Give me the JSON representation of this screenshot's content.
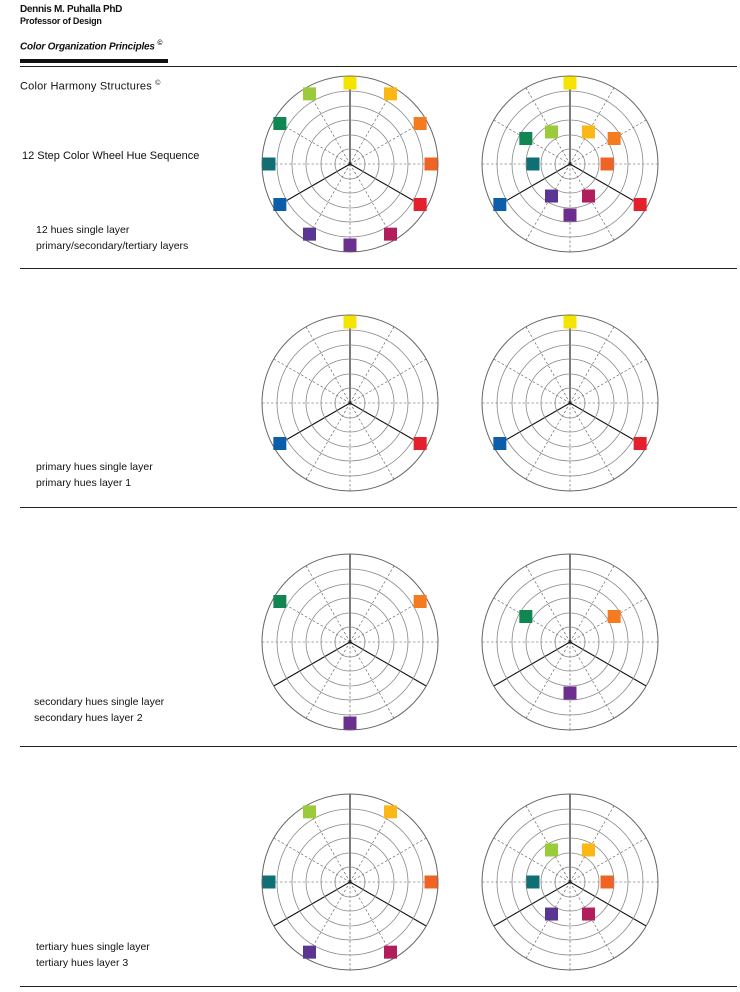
{
  "header": {
    "author": "Dennis M. Puhalla PhD",
    "role": "Professor of Design",
    "series": "Color Organization Principles",
    "copyright_mark": "©"
  },
  "section_title": "Color Harmony Structures",
  "section_heading": "12 Step Color Wheel Hue Sequence",
  "colors": {
    "yellow": "#f5e400",
    "yellow_orange": "#fbb814",
    "orange": "#f47b20",
    "red_orange": "#ef6424",
    "red": "#e3202c",
    "red_violet": "#b01e5c",
    "violet": "#6d2f8e",
    "blue_violet": "#5a3592",
    "blue": "#0d5eaa",
    "blue_green": "#0f6f72",
    "green": "#108653",
    "yellow_green": "#9acb3a"
  },
  "rows": [
    {
      "caption_lines": [
        "12 hues single layer",
        "primary/secondary/tertiary layers"
      ],
      "wheels": [
        {
          "layout": "single",
          "markers": [
            {
              "hue_index": 0,
              "color": "#f5e400"
            },
            {
              "hue_index": 1,
              "color": "#fbb814"
            },
            {
              "hue_index": 2,
              "color": "#f47b20"
            },
            {
              "hue_index": 3,
              "color": "#ef6424"
            },
            {
              "hue_index": 4,
              "color": "#e3202c"
            },
            {
              "hue_index": 5,
              "color": "#b01e5c"
            },
            {
              "hue_index": 6,
              "color": "#6d2f8e"
            },
            {
              "hue_index": 7,
              "color": "#5a3592"
            },
            {
              "hue_index": 8,
              "color": "#0d5eaa"
            },
            {
              "hue_index": 9,
              "color": "#0f6f72"
            },
            {
              "hue_index": 10,
              "color": "#108653"
            },
            {
              "hue_index": 11,
              "color": "#9acb3a"
            }
          ]
        },
        {
          "layout": "layered",
          "markers": [
            {
              "hue_index": 0,
              "layer": 1,
              "color": "#f5e400"
            },
            {
              "hue_index": 1,
              "layer": 3,
              "color": "#fbb814"
            },
            {
              "hue_index": 2,
              "layer": 2,
              "color": "#f47b20"
            },
            {
              "hue_index": 3,
              "layer": 3,
              "color": "#ef6424"
            },
            {
              "hue_index": 4,
              "layer": 1,
              "color": "#e3202c"
            },
            {
              "hue_index": 5,
              "layer": 3,
              "color": "#b01e5c"
            },
            {
              "hue_index": 6,
              "layer": 2,
              "color": "#6d2f8e"
            },
            {
              "hue_index": 7,
              "layer": 3,
              "color": "#5a3592"
            },
            {
              "hue_index": 8,
              "layer": 1,
              "color": "#0d5eaa"
            },
            {
              "hue_index": 9,
              "layer": 3,
              "color": "#0f6f72"
            },
            {
              "hue_index": 10,
              "layer": 2,
              "color": "#108653"
            },
            {
              "hue_index": 11,
              "layer": 3,
              "color": "#9acb3a"
            }
          ]
        }
      ]
    },
    {
      "caption_lines": [
        "primary hues single layer",
        "primary hues layer 1"
      ],
      "wheels": [
        {
          "layout": "single",
          "markers": [
            {
              "hue_index": 0,
              "color": "#f5e400"
            },
            {
              "hue_index": 4,
              "color": "#e3202c"
            },
            {
              "hue_index": 8,
              "color": "#0d5eaa"
            }
          ]
        },
        {
          "layout": "layered",
          "markers": [
            {
              "hue_index": 0,
              "layer": 1,
              "color": "#f5e400"
            },
            {
              "hue_index": 4,
              "layer": 1,
              "color": "#e3202c"
            },
            {
              "hue_index": 8,
              "layer": 1,
              "color": "#0d5eaa"
            }
          ]
        }
      ]
    },
    {
      "caption_lines": [
        "secondary hues single layer",
        "secondary hues layer 2"
      ],
      "wheels": [
        {
          "layout": "single",
          "markers": [
            {
              "hue_index": 2,
              "color": "#f47b20"
            },
            {
              "hue_index": 6,
              "color": "#6d2f8e"
            },
            {
              "hue_index": 10,
              "color": "#108653"
            }
          ]
        },
        {
          "layout": "layered",
          "markers": [
            {
              "hue_index": 2,
              "layer": 2,
              "color": "#f47b20"
            },
            {
              "hue_index": 6,
              "layer": 2,
              "color": "#6d2f8e"
            },
            {
              "hue_index": 10,
              "layer": 2,
              "color": "#108653"
            }
          ]
        }
      ]
    },
    {
      "caption_lines": [
        "tertiary hues single layer",
        "tertiary hues layer 3"
      ],
      "wheels": [
        {
          "layout": "single",
          "markers": [
            {
              "hue_index": 1,
              "color": "#fbb814"
            },
            {
              "hue_index": 3,
              "color": "#ef6424"
            },
            {
              "hue_index": 5,
              "color": "#b01e5c"
            },
            {
              "hue_index": 7,
              "color": "#5a3592"
            },
            {
              "hue_index": 9,
              "color": "#0f6f72"
            },
            {
              "hue_index": 11,
              "color": "#9acb3a"
            }
          ]
        },
        {
          "layout": "layered",
          "markers": [
            {
              "hue_index": 1,
              "layer": 3,
              "color": "#fbb814"
            },
            {
              "hue_index": 3,
              "layer": 3,
              "color": "#ef6424"
            },
            {
              "hue_index": 5,
              "layer": 3,
              "color": "#b01e5c"
            },
            {
              "hue_index": 7,
              "layer": 3,
              "color": "#5a3592"
            },
            {
              "hue_index": 9,
              "layer": 3,
              "color": "#0f6f72"
            },
            {
              "hue_index": 11,
              "layer": 3,
              "color": "#9acb3a"
            }
          ]
        }
      ]
    }
  ]
}
